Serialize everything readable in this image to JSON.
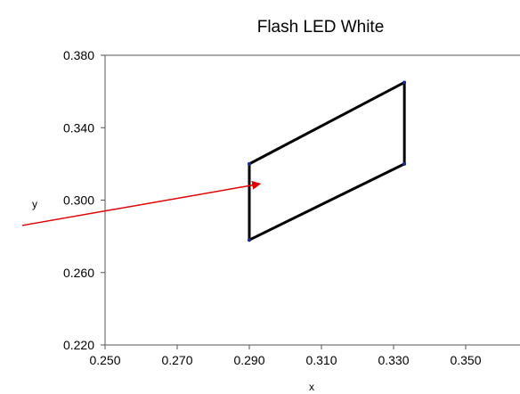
{
  "chart_data": {
    "type": "line",
    "title": "Flash LED White",
    "xlabel": "x",
    "ylabel": "y",
    "xlim": [
      0.25,
      0.36
    ],
    "ylim": [
      0.22,
      0.38
    ],
    "x_ticks": [
      "0.250",
      "0.270",
      "0.290",
      "0.310",
      "0.330",
      "0.350"
    ],
    "y_ticks": [
      "0.220",
      "0.260",
      "0.300",
      "0.340",
      "0.380"
    ],
    "grid": false,
    "legend": "none",
    "series": [
      {
        "points": [
          {
            "x": 0.29,
            "y": 0.278
          },
          {
            "x": 0.29,
            "y": 0.32
          },
          {
            "x": 0.333,
            "y": 0.365
          },
          {
            "x": 0.333,
            "y": 0.32
          },
          {
            "x": 0.29,
            "y": 0.278
          }
        ],
        "color": "#000000"
      }
    ],
    "annotations": [
      {
        "type": "arrow",
        "color": "#e00000",
        "from": {
          "x": 0.227,
          "y": 0.286
        },
        "to": {
          "x": 0.293,
          "y": 0.309
        }
      }
    ]
  }
}
